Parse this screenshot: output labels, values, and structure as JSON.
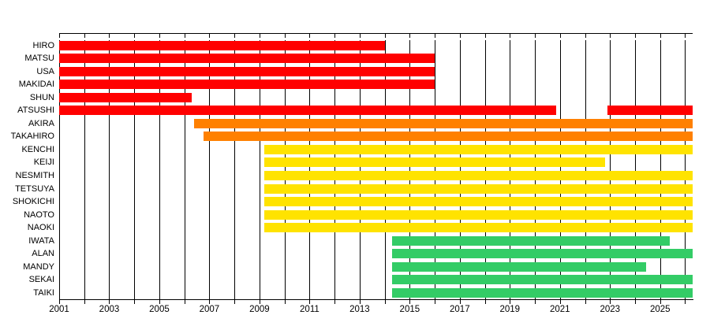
{
  "chart_data": {
    "type": "gantt-timeline",
    "title": "",
    "xlabel": "",
    "ylabel": "",
    "legend": "none",
    "grid": "vertical-yearly-black-lines",
    "axis": {
      "x_range": [
        2001,
        2026.3
      ],
      "labeled_tick_years": [
        2001,
        2003,
        2005,
        2007,
        2009,
        2011,
        2013,
        2015,
        2017,
        2019,
        2021,
        2023,
        2025
      ],
      "minor_tick_every_years": 1
    },
    "palette": {
      "red": "#FF0000",
      "orange": "#FF8000",
      "yellow": "#FFE300",
      "green": "#33CC66"
    },
    "members": [
      {
        "name": "HIRO",
        "color": "red",
        "segments": [
          [
            2001,
            2014.0
          ]
        ]
      },
      {
        "name": "MATSU",
        "color": "red",
        "segments": [
          [
            2001,
            2016.0
          ]
        ]
      },
      {
        "name": "USA",
        "color": "red",
        "segments": [
          [
            2001,
            2016.0
          ]
        ]
      },
      {
        "name": "MAKIDAI",
        "color": "red",
        "segments": [
          [
            2001,
            2016.0
          ]
        ]
      },
      {
        "name": "SHUN",
        "color": "red",
        "segments": [
          [
            2001,
            2006.3
          ]
        ]
      },
      {
        "name": "ATSUSHI",
        "color": "red",
        "segments": [
          [
            2001,
            2020.85
          ],
          [
            2022.9,
            2026.3
          ]
        ]
      },
      {
        "name": "AKIRA",
        "color": "orange",
        "segments": [
          [
            2006.4,
            2026.3
          ]
        ]
      },
      {
        "name": "TAKAHIRO",
        "color": "orange",
        "segments": [
          [
            2006.75,
            2026.3
          ]
        ]
      },
      {
        "name": "KENCHI",
        "color": "yellow",
        "segments": [
          [
            2009.2,
            2026.3
          ]
        ]
      },
      {
        "name": "KEIJI",
        "color": "yellow",
        "segments": [
          [
            2009.2,
            2022.8
          ]
        ]
      },
      {
        "name": "NESMITH",
        "color": "yellow",
        "segments": [
          [
            2009.2,
            2026.3
          ]
        ]
      },
      {
        "name": "TETSUYA",
        "color": "yellow",
        "segments": [
          [
            2009.2,
            2026.3
          ]
        ]
      },
      {
        "name": "SHOKICHI",
        "color": "yellow",
        "segments": [
          [
            2009.2,
            2026.3
          ]
        ]
      },
      {
        "name": "NAOTO",
        "color": "yellow",
        "segments": [
          [
            2009.2,
            2026.3
          ]
        ]
      },
      {
        "name": "NAOKI",
        "color": "yellow",
        "segments": [
          [
            2009.2,
            2026.3
          ]
        ]
      },
      {
        "name": "IWATA",
        "color": "green",
        "segments": [
          [
            2014.3,
            2025.4
          ]
        ]
      },
      {
        "name": "ALAN",
        "color": "green",
        "segments": [
          [
            2014.3,
            2026.3
          ]
        ]
      },
      {
        "name": "MANDY",
        "color": "green",
        "segments": [
          [
            2014.3,
            2024.45
          ]
        ]
      },
      {
        "name": "SEKAI",
        "color": "green",
        "segments": [
          [
            2014.3,
            2026.3
          ]
        ]
      },
      {
        "name": "TAIKI",
        "color": "green",
        "segments": [
          [
            2014.3,
            2026.3
          ]
        ]
      }
    ]
  },
  "layout_note_visible_text_only": true
}
